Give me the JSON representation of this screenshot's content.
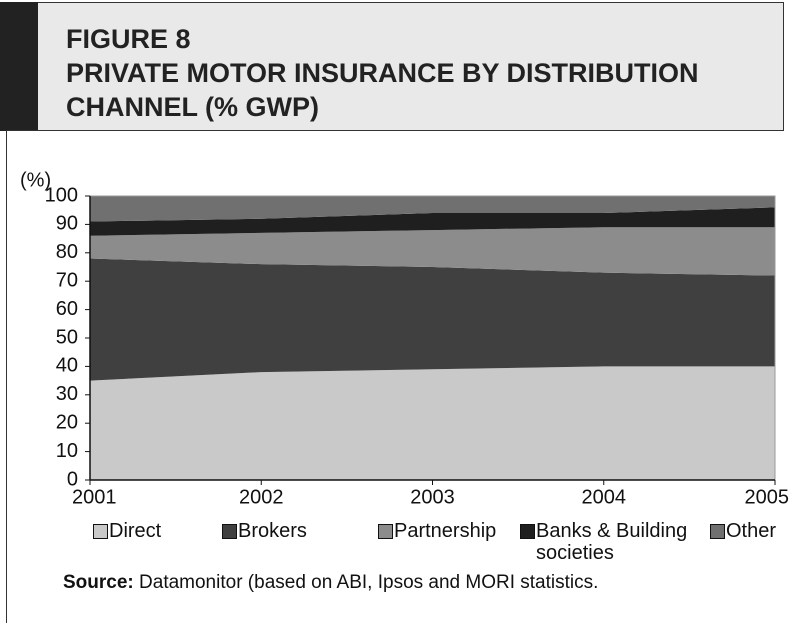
{
  "chart_data": {
    "type": "stacked_area",
    "figure_label": "FIGURE 8",
    "title": "PRIVATE MOTOR INSURANCE BY DISTRIBUTION CHANNEL (% GWP)",
    "y_label": "(%)",
    "x": [
      2001,
      2002,
      2003,
      2004,
      2005
    ],
    "xlim": [
      2001,
      2005
    ],
    "xticks": [
      2001,
      2002,
      2003,
      2004,
      2005
    ],
    "ylim": [
      0,
      100
    ],
    "yticks": [
      0,
      10,
      20,
      30,
      40,
      50,
      60,
      70,
      80,
      90,
      100
    ],
    "series": [
      {
        "name": "Direct",
        "color": "#c9c9c9",
        "values": [
          35,
          38,
          39,
          40,
          40
        ]
      },
      {
        "name": "Brokers",
        "color": "#404040",
        "values": [
          43,
          38,
          36,
          33,
          32
        ]
      },
      {
        "name": "Partnership",
        "color": "#8c8c8c",
        "values": [
          8,
          11,
          13,
          16,
          17
        ]
      },
      {
        "name": "Banks & Building societies",
        "color": "#1f1f1f",
        "values": [
          5,
          5,
          6,
          5,
          7
        ]
      },
      {
        "name": "Other",
        "color": "#707070",
        "values": [
          9,
          8,
          6,
          6,
          4
        ]
      }
    ],
    "source_label": "Source:",
    "source_text": "Datamonitor (based on ABI, Ipsos and MORI statistics."
  }
}
